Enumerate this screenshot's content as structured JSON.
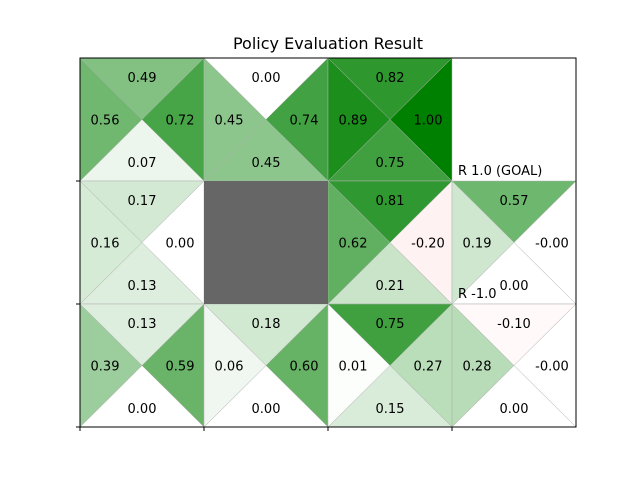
{
  "chart_data": {
    "type": "heatmap",
    "title": "Policy Evaluation Result",
    "rows": 3,
    "cols": 4,
    "color_scale": {
      "positive": "#008000",
      "negative": "#ff0000",
      "zero": "#ffffff",
      "vmax": 1.0
    },
    "wall_color": "#666666",
    "walls": [
      {
        "row": 1,
        "col": 1
      }
    ],
    "cells": [
      {
        "row": 0,
        "col": 0,
        "values": {
          "up": 0.49,
          "left": 0.56,
          "right": 0.72,
          "down": 0.07
        },
        "labels": {
          "up": "0.49",
          "left": "0.56",
          "right": "0.72",
          "down": "0.07"
        }
      },
      {
        "row": 0,
        "col": 1,
        "values": {
          "up": 0.0,
          "left": 0.45,
          "right": 0.74,
          "down": 0.45
        },
        "labels": {
          "up": "0.00",
          "left": "0.45",
          "right": "0.74",
          "down": "0.45"
        }
      },
      {
        "row": 0,
        "col": 2,
        "values": {
          "up": 0.82,
          "left": 0.89,
          "right": 1.0,
          "down": 0.75
        },
        "labels": {
          "up": "0.82",
          "left": "0.89",
          "right": "1.00",
          "down": "0.75"
        }
      },
      {
        "row": 1,
        "col": 0,
        "values": {
          "up": 0.17,
          "left": 0.16,
          "right": 0.0,
          "down": 0.13
        },
        "labels": {
          "up": "0.17",
          "left": "0.16",
          "right": "0.00",
          "down": "0.13"
        }
      },
      {
        "row": 1,
        "col": 2,
        "values": {
          "up": 0.81,
          "left": 0.62,
          "right": -0.2,
          "down": 0.21
        },
        "labels": {
          "up": "0.81",
          "left": "0.62",
          "right": "-0.20",
          "down": "0.21"
        }
      },
      {
        "row": 1,
        "col": 3,
        "values": {
          "up": 0.57,
          "left": 0.19,
          "right": -0.0,
          "down": 0.0
        },
        "labels": {
          "up": "0.57",
          "left": "0.19",
          "right": "-0.00",
          "down": "0.00"
        }
      },
      {
        "row": 2,
        "col": 0,
        "values": {
          "up": 0.13,
          "left": 0.39,
          "right": 0.59,
          "down": 0.0
        },
        "labels": {
          "up": "0.13",
          "left": "0.39",
          "right": "0.59",
          "down": "0.00"
        }
      },
      {
        "row": 2,
        "col": 1,
        "values": {
          "up": 0.18,
          "left": 0.06,
          "right": 0.6,
          "down": 0.0
        },
        "labels": {
          "up": "0.18",
          "left": "0.06",
          "right": "0.60",
          "down": "0.00"
        }
      },
      {
        "row": 2,
        "col": 2,
        "values": {
          "up": 0.75,
          "left": 0.01,
          "right": 0.27,
          "down": 0.15
        },
        "labels": {
          "up": "0.75",
          "left": "0.01",
          "right": "0.27",
          "down": "0.15"
        }
      },
      {
        "row": 2,
        "col": 3,
        "values": {
          "up": -0.1,
          "left": 0.28,
          "right": -0.0,
          "down": 0.0
        },
        "labels": {
          "up": "-0.10",
          "left": "0.28",
          "right": "-0.00",
          "down": "0.00"
        }
      }
    ],
    "terminals": [
      {
        "row": 0,
        "col": 3,
        "label": "R 1.0 (GOAL)"
      },
      {
        "row": 1,
        "col": 3,
        "label": "R -1.0"
      }
    ]
  }
}
